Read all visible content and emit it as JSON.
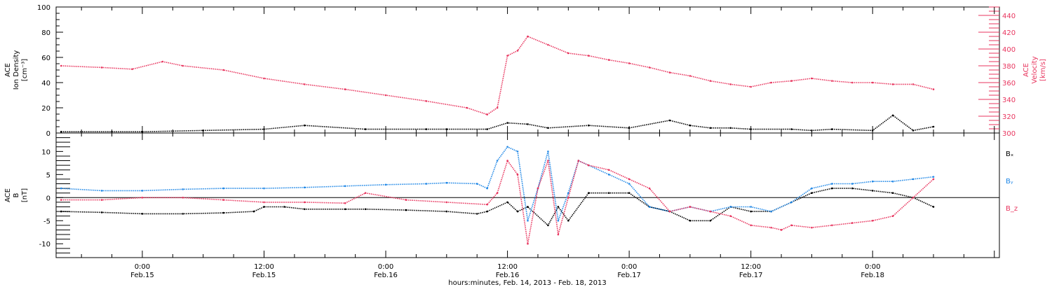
{
  "colors": {
    "black": "#000000",
    "pink": "#e8365f",
    "blue": "#1f87e6"
  },
  "chart_data": [
    {
      "type": "scatter",
      "panel": "top",
      "ylabel_left_lines": [
        "ACE",
        "Ion Density",
        "[cm⁻³]"
      ],
      "ylabel_right_lines": [
        "ACE",
        "Velocity",
        "[km/s]"
      ],
      "ylim_left": [
        0,
        100
      ],
      "yticks_left": [
        "0",
        "20",
        "40",
        "60",
        "80",
        "100"
      ],
      "ylim_right": [
        300,
        450
      ],
      "yticks_right": [
        "300",
        "320",
        "340",
        "360",
        "380",
        "400",
        "420",
        "440"
      ],
      "x_range_hours": [
        -8.5,
        84.5
      ],
      "series": [
        {
          "name": "Ion Density",
          "axis": "left",
          "color": "#000000",
          "x_hours": [
            -8,
            0,
            6,
            12,
            16,
            22,
            28,
            30,
            34,
            36,
            38,
            40,
            44,
            48,
            52,
            54,
            56,
            58,
            60,
            64,
            66,
            68,
            72,
            74,
            76,
            78
          ],
          "y": [
            1,
            1,
            2,
            3,
            6,
            3,
            3,
            3,
            3,
            8,
            7,
            4,
            6,
            4,
            10,
            6,
            4,
            4,
            3,
            3,
            2,
            3,
            2,
            14,
            2,
            5
          ]
        },
        {
          "name": "Velocity",
          "axis": "right",
          "color": "#e8365f",
          "x_hours": [
            -8,
            -4,
            -1,
            2,
            4,
            8,
            12,
            16,
            20,
            24,
            28,
            32,
            34,
            35,
            36,
            37,
            38,
            40,
            42,
            44,
            46,
            48,
            50,
            52,
            54,
            56,
            58,
            60,
            62,
            64,
            66,
            68,
            70,
            72,
            74,
            76,
            78
          ],
          "y": [
            380,
            378,
            376,
            385,
            380,
            375,
            365,
            358,
            352,
            345,
            338,
            330,
            322,
            330,
            392,
            398,
            415,
            405,
            395,
            392,
            387,
            383,
            378,
            372,
            368,
            362,
            358,
            355,
            360,
            362,
            365,
            362,
            360,
            360,
            358,
            358,
            352
          ]
        }
      ]
    },
    {
      "type": "scatter",
      "panel": "bottom",
      "ylabel_lines": [
        "ACE",
        "B",
        "[nT]"
      ],
      "ylim": [
        -13,
        14
      ],
      "yticks": [
        "-10",
        "-5",
        "0",
        "5",
        "10"
      ],
      "xticks_hours": [
        0,
        12,
        24,
        36,
        48,
        60,
        72
      ],
      "xtick_time_labels": [
        "0:00",
        "12:00",
        "0:00",
        "12:00",
        "0:00",
        "12:00",
        "0:00"
      ],
      "xtick_date_labels": [
        "Feb.15",
        "Feb.15",
        "Feb.16",
        "Feb.16",
        "Feb.17",
        "Feb.17",
        "Feb.18"
      ],
      "xlabel": "hours:minutes, Feb. 14, 2013 - Feb. 18, 2013",
      "legend_position": "right",
      "legend": [
        {
          "label": "Bₓ",
          "color": "#000000"
        },
        {
          "label": "Bᵧ",
          "color": "#1f87e6"
        },
        {
          "label": "B_z",
          "color": "#e8365f"
        }
      ],
      "series": [
        {
          "name": "Bx",
          "color": "#000000",
          "x_hours": [
            -8,
            -4,
            0,
            4,
            8,
            11,
            12,
            14,
            16,
            20,
            22,
            26,
            30,
            33,
            34,
            36,
            37,
            38,
            40,
            41,
            42,
            44,
            46,
            48,
            50,
            52,
            54,
            56,
            58,
            60,
            62,
            64,
            66,
            68,
            70,
            72,
            74,
            76,
            78
          ],
          "y": [
            -3,
            -3.2,
            -3.5,
            -3.5,
            -3.3,
            -3,
            -2,
            -2,
            -2.5,
            -2.5,
            -2.5,
            -2.7,
            -3,
            -3.5,
            -3,
            -1,
            -3,
            -2,
            -6,
            -2,
            -5,
            1,
            1,
            1,
            -2,
            -3,
            -5,
            -5,
            -2,
            -3,
            -3,
            -1,
            1,
            2,
            2,
            1.5,
            1,
            0,
            -2
          ]
        },
        {
          "name": "By",
          "color": "#1f87e6",
          "x_hours": [
            -8,
            -4,
            0,
            4,
            8,
            12,
            16,
            20,
            24,
            28,
            30,
            33,
            34,
            35,
            36,
            37,
            38,
            39,
            40,
            41,
            42,
            43,
            44,
            46,
            48,
            50,
            52,
            54,
            56,
            58,
            60,
            62,
            64,
            66,
            68,
            70,
            72,
            74,
            76,
            78
          ],
          "y": [
            2,
            1.5,
            1.5,
            1.8,
            2,
            2,
            2.2,
            2.5,
            2.8,
            3,
            3.2,
            3,
            2,
            8,
            11,
            10,
            -5,
            2,
            10,
            -5,
            1,
            8,
            7,
            5,
            3,
            -2,
            -3,
            -2,
            -3,
            -2,
            -2,
            -3,
            -1,
            2,
            3,
            3,
            3.5,
            3.5,
            4,
            4.5
          ]
        },
        {
          "name": "Bz",
          "color": "#e8365f",
          "x_hours": [
            -8,
            -4,
            0,
            4,
            8,
            12,
            16,
            20,
            22,
            26,
            30,
            34,
            35,
            36,
            37,
            38,
            39,
            40,
            41,
            42,
            43,
            44,
            46,
            48,
            50,
            52,
            54,
            56,
            58,
            60,
            62,
            63,
            64,
            66,
            68,
            70,
            72,
            74,
            76,
            78
          ],
          "y": [
            -0.5,
            -0.5,
            0,
            0,
            -0.5,
            -1,
            -1,
            -1.2,
            1,
            -0.5,
            -1,
            -1.5,
            1,
            8,
            5,
            -10,
            2,
            8,
            -8,
            0,
            8,
            7,
            6,
            4,
            2,
            -3,
            -2,
            -3,
            -4,
            -6,
            -6.5,
            -7,
            -6,
            -6.5,
            -6,
            -5.5,
            -5,
            -4,
            0,
            4
          ]
        }
      ]
    }
  ]
}
